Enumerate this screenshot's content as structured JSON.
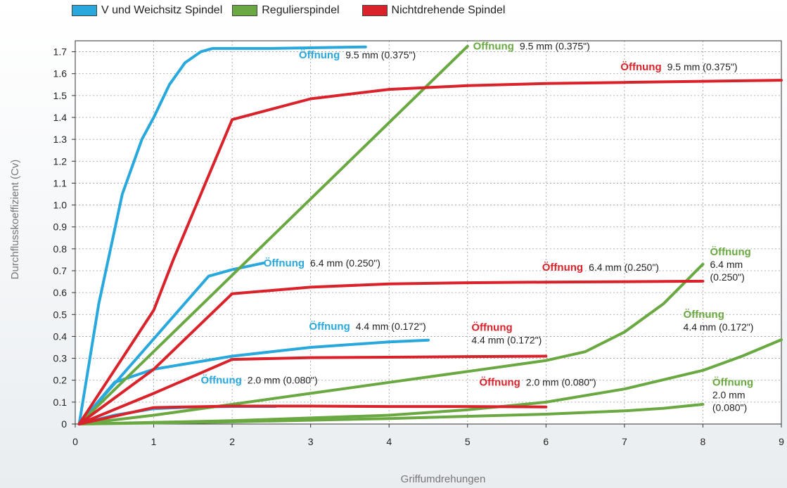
{
  "legend": [
    {
      "label": "V und Weichsitz Spindel",
      "color": "#29a8dd"
    },
    {
      "label": "Regulierspindel",
      "color": "#6aa842"
    },
    {
      "label": "Nichtdrehende Spindel",
      "color": "#d9222a"
    }
  ],
  "chart_data": {
    "type": "line",
    "xlabel": "Griffumdrehungen",
    "ylabel": "Durchflusskoeffizient  (Cv)",
    "xlim": [
      0,
      9
    ],
    "ylim": [
      0,
      1.75
    ],
    "x_ticks": [
      "0",
      "1",
      "2",
      "3",
      "4",
      "5",
      "6",
      "7",
      "8",
      "9"
    ],
    "y_ticks": [
      "0",
      "0.1",
      "0.2",
      "0.3",
      "0.4",
      "0.5",
      "0.6",
      "0.7",
      "0.8",
      "0.9",
      "1.0",
      "1.1",
      "1.2",
      "1.3",
      "1.4",
      "1.5",
      "1.6",
      "1.7"
    ],
    "grid": "dotted",
    "series": [
      {
        "group": "V und Weichsitz Spindel",
        "color": "#29a8dd",
        "orifice": "9.5 mm (0.375\")",
        "points": [
          [
            0.05,
            0
          ],
          [
            0.3,
            0.55
          ],
          [
            0.6,
            1.05
          ],
          [
            0.85,
            1.3
          ],
          [
            1.0,
            1.4
          ],
          [
            1.2,
            1.55
          ],
          [
            1.4,
            1.65
          ],
          [
            1.6,
            1.7
          ],
          [
            1.75,
            1.715
          ],
          [
            2.5,
            1.715
          ],
          [
            3.7,
            1.722
          ]
        ]
      },
      {
        "group": "V und Weichsitz Spindel",
        "color": "#29a8dd",
        "orifice": "6.4 mm (0.250\")",
        "points": [
          [
            0.05,
            0
          ],
          [
            1.7,
            0.675
          ],
          [
            2.0,
            0.705
          ],
          [
            2.4,
            0.735
          ]
        ]
      },
      {
        "group": "V und Weichsitz Spindel",
        "color": "#29a8dd",
        "orifice": "4.4 mm (0.172\")",
        "points": [
          [
            0.05,
            0
          ],
          [
            0.5,
            0.19
          ],
          [
            1.0,
            0.25
          ],
          [
            2.0,
            0.31
          ],
          [
            3.0,
            0.35
          ],
          [
            4.0,
            0.375
          ],
          [
            4.5,
            0.383
          ]
        ]
      },
      {
        "group": "V und Weichsitz Spindel",
        "color": "#29a8dd",
        "orifice": "2.0 mm (0.080\")",
        "points": [
          [
            0.05,
            0
          ],
          [
            0.5,
            0.04
          ],
          [
            1.0,
            0.07
          ],
          [
            1.5,
            0.078
          ],
          [
            2.0,
            0.08
          ],
          [
            2.55,
            0.08
          ]
        ]
      },
      {
        "group": "Regulierspindel",
        "color": "#6aa842",
        "orifice": "9.5 mm (0.375\")",
        "points": [
          [
            0.05,
            0
          ],
          [
            5.0,
            1.725
          ]
        ]
      },
      {
        "group": "Regulierspindel",
        "color": "#6aa842",
        "orifice": "6.4 mm (0.250\")",
        "points": [
          [
            0.05,
            0
          ],
          [
            1.0,
            0.04
          ],
          [
            2.0,
            0.09
          ],
          [
            3.0,
            0.14
          ],
          [
            4.0,
            0.19
          ],
          [
            5.0,
            0.24
          ],
          [
            6.0,
            0.29
          ],
          [
            6.5,
            0.33
          ],
          [
            7.0,
            0.42
          ],
          [
            7.5,
            0.55
          ],
          [
            8.0,
            0.73
          ]
        ]
      },
      {
        "group": "Regulierspindel",
        "color": "#6aa842",
        "orifice": "4.4 mm (0.172\")",
        "points": [
          [
            0.05,
            0
          ],
          [
            2.0,
            0.015
          ],
          [
            4.0,
            0.04
          ],
          [
            5.0,
            0.065
          ],
          [
            6.0,
            0.1
          ],
          [
            7.0,
            0.16
          ],
          [
            8.0,
            0.245
          ],
          [
            8.5,
            0.31
          ],
          [
            9.0,
            0.385
          ]
        ]
      },
      {
        "group": "Regulierspindel",
        "color": "#6aa842",
        "orifice": "2.0 mm (0.080\")",
        "points": [
          [
            0.05,
            0
          ],
          [
            2.0,
            0.01
          ],
          [
            4.0,
            0.025
          ],
          [
            6.0,
            0.045
          ],
          [
            7.0,
            0.06
          ],
          [
            7.5,
            0.072
          ],
          [
            8.0,
            0.09
          ]
        ]
      },
      {
        "group": "Nichtdrehende Spindel",
        "color": "#d9222a",
        "orifice": "9.5 mm (0.375\")",
        "points": [
          [
            0.05,
            0
          ],
          [
            1.0,
            0.52
          ],
          [
            1.25,
            0.75
          ],
          [
            2.0,
            1.39
          ],
          [
            3.0,
            1.485
          ],
          [
            4.0,
            1.528
          ],
          [
            5.0,
            1.545
          ],
          [
            6.0,
            1.555
          ],
          [
            7.0,
            1.56
          ],
          [
            8.0,
            1.565
          ],
          [
            9.0,
            1.57
          ]
        ]
      },
      {
        "group": "Nichtdrehende Spindel",
        "color": "#d9222a",
        "orifice": "6.4 mm (0.250\")",
        "points": [
          [
            0.05,
            0
          ],
          [
            1.0,
            0.25
          ],
          [
            2.0,
            0.595
          ],
          [
            3.0,
            0.625
          ],
          [
            4.0,
            0.64
          ],
          [
            5.0,
            0.645
          ],
          [
            6.0,
            0.648
          ],
          [
            7.0,
            0.65
          ],
          [
            8.0,
            0.652
          ]
        ]
      },
      {
        "group": "Nichtdrehende Spindel",
        "color": "#d9222a",
        "orifice": "4.4 mm (0.172\")",
        "points": [
          [
            0.05,
            0
          ],
          [
            1.0,
            0.14
          ],
          [
            2.0,
            0.295
          ],
          [
            3.0,
            0.303
          ],
          [
            4.0,
            0.305
          ],
          [
            5.0,
            0.308
          ],
          [
            6.0,
            0.31
          ]
        ]
      },
      {
        "group": "Nichtdrehende Spindel",
        "color": "#d9222a",
        "orifice": "2.0 mm (0.080\")",
        "points": [
          [
            0.05,
            0
          ],
          [
            1.0,
            0.075
          ],
          [
            2.0,
            0.082
          ],
          [
            3.0,
            0.082
          ],
          [
            4.0,
            0.08
          ],
          [
            5.0,
            0.08
          ],
          [
            6.0,
            0.078
          ]
        ]
      }
    ],
    "annotations": [
      {
        "bold": "Öffnung",
        "value": "9.5 mm (0.375\")",
        "color": "#29a8dd",
        "x": 2.85,
        "y": 1.67
      },
      {
        "bold": "Öffnung",
        "value": "9.5 mm (0.375\")",
        "color": "#6aa842",
        "x": 5.07,
        "y": 1.71
      },
      {
        "bold": "Öffnung",
        "value": "9.5 mm (0.375\")",
        "color": "#d9222a",
        "x": 6.95,
        "y": 1.615
      },
      {
        "bold": "Öffnung",
        "value": "6.4 mm (0.250\")",
        "color": "#29a8dd",
        "x": 2.4,
        "y": 0.72
      },
      {
        "bold": "Öffnung",
        "value": "6.4 mm (0.250\")",
        "color": "#d9222a",
        "x": 5.95,
        "y": 0.7
      },
      {
        "bold": "Öffnung",
        "value": "4.4 mm (0.172\")",
        "color": "#29a8dd",
        "x": 2.98,
        "y": 0.43
      },
      {
        "bold": "Öffnung",
        "value": "2.0 mm (0.080\")",
        "color": "#29a8dd",
        "x": 1.6,
        "y": 0.185
      },
      {
        "bold": "Öffnung",
        "value": "2.0 mm (0.080\")",
        "color": "#d9222a",
        "x": 5.15,
        "y": 0.175
      },
      {
        "bold": "Öffnung",
        "lines": [
          "4.4 mm (0.172\")"
        ],
        "color": "#d9222a",
        "x": 5.05,
        "y": 0.425
      },
      {
        "bold": "Öffnung",
        "lines": [
          "6.4 mm",
          "(0.250\")"
        ],
        "color": "#6aa842",
        "x": 8.09,
        "y": 0.77
      },
      {
        "bold": "Öffnung",
        "lines": [
          "4.4 mm (0.172\")"
        ],
        "color": "#6aa842",
        "x": 7.75,
        "y": 0.485
      },
      {
        "bold": "Öffnung",
        "lines": [
          "2.0 mm",
          "(0.080\")"
        ],
        "color": "#6aa842",
        "x": 8.12,
        "y": 0.175
      }
    ]
  }
}
